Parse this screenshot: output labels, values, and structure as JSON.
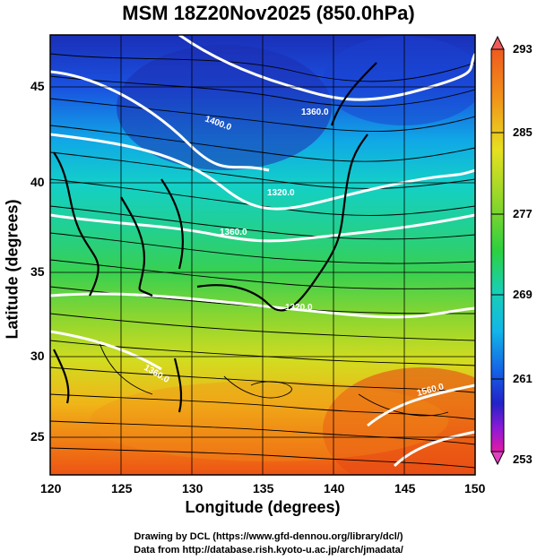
{
  "title": "MSM 18Z20Nov2025 (850.0hPa)",
  "xlabel": "Longitude (degrees)",
  "ylabel": "Latitude  (degrees)",
  "x_ticks": [
    "120",
    "125",
    "130",
    "135",
    "140",
    "145",
    "150"
  ],
  "y_ticks": [
    "45",
    "40",
    "35",
    "30",
    "25"
  ],
  "colorbar_ticks": [
    "293",
    "285",
    "277",
    "269",
    "261",
    "253"
  ],
  "contour_labels": [
    "1400.0",
    "1360.0",
    "1320.0",
    "1360.0",
    "1320.0",
    "1360.0",
    "1560.0"
  ],
  "credits": {
    "line1": "Drawing by DCL (https://www.gfd-dennou.org/library/dcl/)",
    "line2": "Data from http://database.rish.kyoto-u.ac.jp/arch/jmadata/"
  },
  "map": {
    "lon_range": [
      120,
      150
    ],
    "lat_range": [
      22.5,
      47.5
    ],
    "field": "temperature (K) with streamlines and geopotential height contours",
    "colorbar_range": [
      253,
      293
    ]
  }
}
